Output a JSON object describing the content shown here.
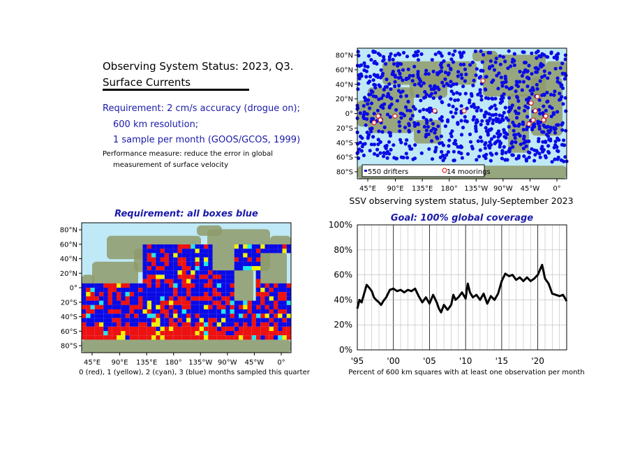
{
  "header": {
    "title_line1": "Observing System Status: 2023, Q3.",
    "title_line2": "Surface Currents",
    "requirement_lines": [
      "Requirement: 2 cm/s accuracy (drogue on);",
      "600 km resolution;",
      "1 sample per month (GOOS/GCOS, 1999)"
    ],
    "performance_lines": [
      "Performance measure: reduce the error in global",
      "measurement of surface velocity"
    ]
  },
  "colors": {
    "blue": "#0a0ae6",
    "red": "#ee1111",
    "yellow": "#f2f200",
    "cyan": "#22e6f0",
    "ocean": "#bfe9f7",
    "land": "#8e9a6a",
    "title_blue": "#1a1aaa"
  },
  "map_status": {
    "legend_drifters": "550 drifters",
    "legend_moorings": "14 moorings",
    "caption": "SSV observing system status, July-September 2023",
    "lat_ticks": [
      "80°N",
      "60°N",
      "40°N",
      "20°N",
      "0°",
      "20°S",
      "40°S",
      "60°S",
      "80°S"
    ],
    "lon_ticks": [
      "45°E",
      "90°E",
      "135°E",
      "180°",
      "135°W",
      "90°W",
      "45°W",
      "0°"
    ]
  },
  "map_boxes": {
    "title": "Requirement: all boxes blue",
    "caption": "0 (red), 1 (yellow), 2 (cyan), 3 (blue) months sampled this quarter",
    "lat_ticks": [
      "80°N",
      "60°N",
      "40°N",
      "20°N",
      "0°",
      "20°S",
      "40°S",
      "60°S",
      "80°S"
    ],
    "lon_ticks": [
      "45°E",
      "90°E",
      "135°E",
      "180°",
      "135°W",
      "90°W",
      "45°W",
      "0°"
    ]
  },
  "chart_data": {
    "type": "line",
    "title": "Goal: 100% global coverage",
    "xlabel": "Percent of 600 km squares with at least one observation per month",
    "ylabel": "",
    "x_tick_labels": [
      "'95",
      "'00",
      "'05",
      "'10",
      "'15",
      "'20"
    ],
    "x_tick_years": [
      1995,
      2000,
      2005,
      2010,
      2015,
      2020
    ],
    "y_tick_labels": [
      "0%",
      "20%",
      "40%",
      "60%",
      "80%",
      "100%"
    ],
    "xlim": [
      1995,
      2024
    ],
    "ylim": [
      0,
      100
    ],
    "grid": true,
    "series": [
      {
        "x": [
          1995.0,
          1995.3,
          1995.6,
          1996.0,
          1996.3,
          1996.6,
          1997.0,
          1997.3,
          1997.6,
          1998.0,
          1998.3,
          1998.6,
          1999.0,
          1999.5,
          2000.0,
          2000.5,
          2001.0,
          2001.5,
          2002.0,
          2002.5,
          2003.0,
          2003.5,
          2004.0,
          2004.5,
          2005.0,
          2005.5,
          2006.0,
          2006.3,
          2006.6,
          2007.0,
          2007.5,
          2008.0,
          2008.3,
          2008.6,
          2009.0,
          2009.5,
          2010.0,
          2010.3,
          2010.6,
          2011.0,
          2011.5,
          2012.0,
          2012.5,
          2013.0,
          2013.5,
          2014.0,
          2014.5,
          2015.0,
          2015.5,
          2016.0,
          2016.5,
          2017.0,
          2017.5,
          2018.0,
          2018.5,
          2019.0,
          2019.5,
          2020.0,
          2020.3,
          2020.6,
          2021.0,
          2021.5,
          2022.0,
          2022.5,
          2023.0,
          2023.5,
          2024.0
        ],
        "y": [
          33,
          40,
          38,
          46,
          52,
          50,
          47,
          42,
          40,
          38,
          36,
          39,
          42,
          48,
          49,
          47,
          48,
          46,
          48,
          47,
          49,
          43,
          38,
          42,
          37,
          44,
          38,
          33,
          30,
          36,
          32,
          36,
          44,
          40,
          42,
          46,
          41,
          53,
          46,
          42,
          44,
          40,
          45,
          37,
          43,
          40,
          45,
          55,
          61,
          59,
          60,
          56,
          58,
          55,
          58,
          55,
          57,
          60,
          64,
          68,
          57,
          53,
          45,
          44,
          43,
          44,
          39
        ]
      }
    ]
  }
}
